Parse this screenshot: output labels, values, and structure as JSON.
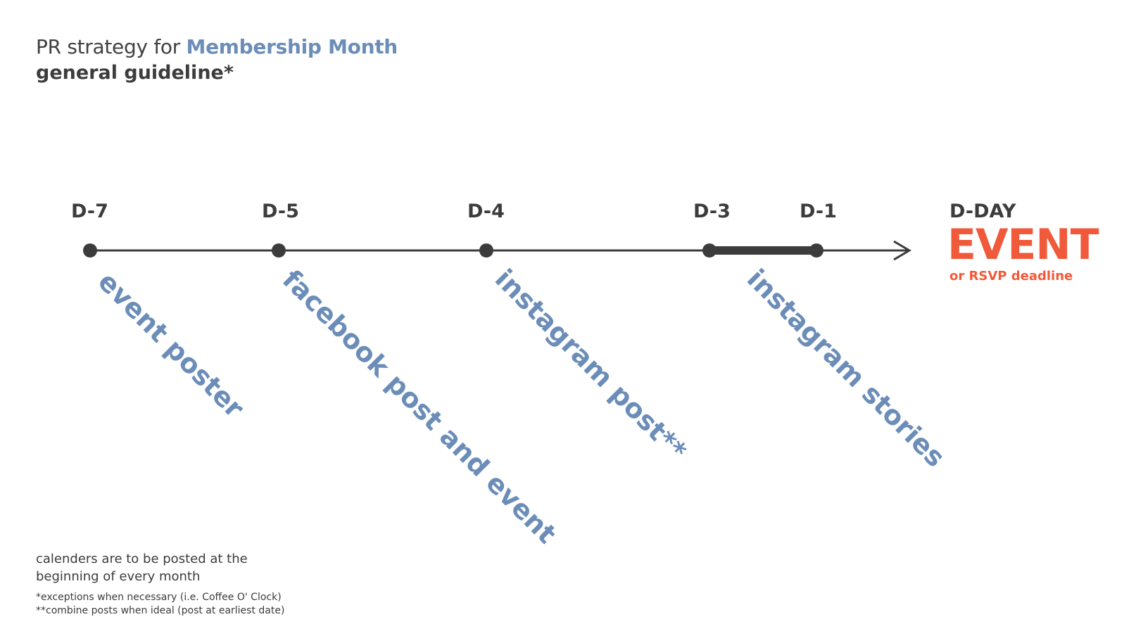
{
  "header": {
    "title_prefix": "PR strategy for ",
    "title_accent": "Membership Month",
    "subtitle": "general guideline*"
  },
  "timeline": {
    "days": [
      {
        "label": "D-7"
      },
      {
        "label": "D-5"
      },
      {
        "label": "D-4"
      },
      {
        "label": "D-3"
      },
      {
        "label": "D-1"
      },
      {
        "label": "D-DAY"
      }
    ],
    "tasks": [
      {
        "text": "event poster"
      },
      {
        "text": "facebook post and event"
      },
      {
        "text": "instagram post**"
      },
      {
        "text": "instagram stories"
      }
    ],
    "event": {
      "title": "EVENT",
      "subtitle": "or RSVP deadline"
    }
  },
  "notes": {
    "main_line1": "calenders are to be posted at the",
    "main_line2": "beginning of every month",
    "footnote1": "*exceptions when necessary (i.e. Coffee O' Clock)",
    "footnote2": "**combine posts when ideal (post at earliest date)"
  },
  "colors": {
    "accent": "#6b8db8",
    "event": "#f05a3a",
    "text": "#3c3c3c"
  }
}
